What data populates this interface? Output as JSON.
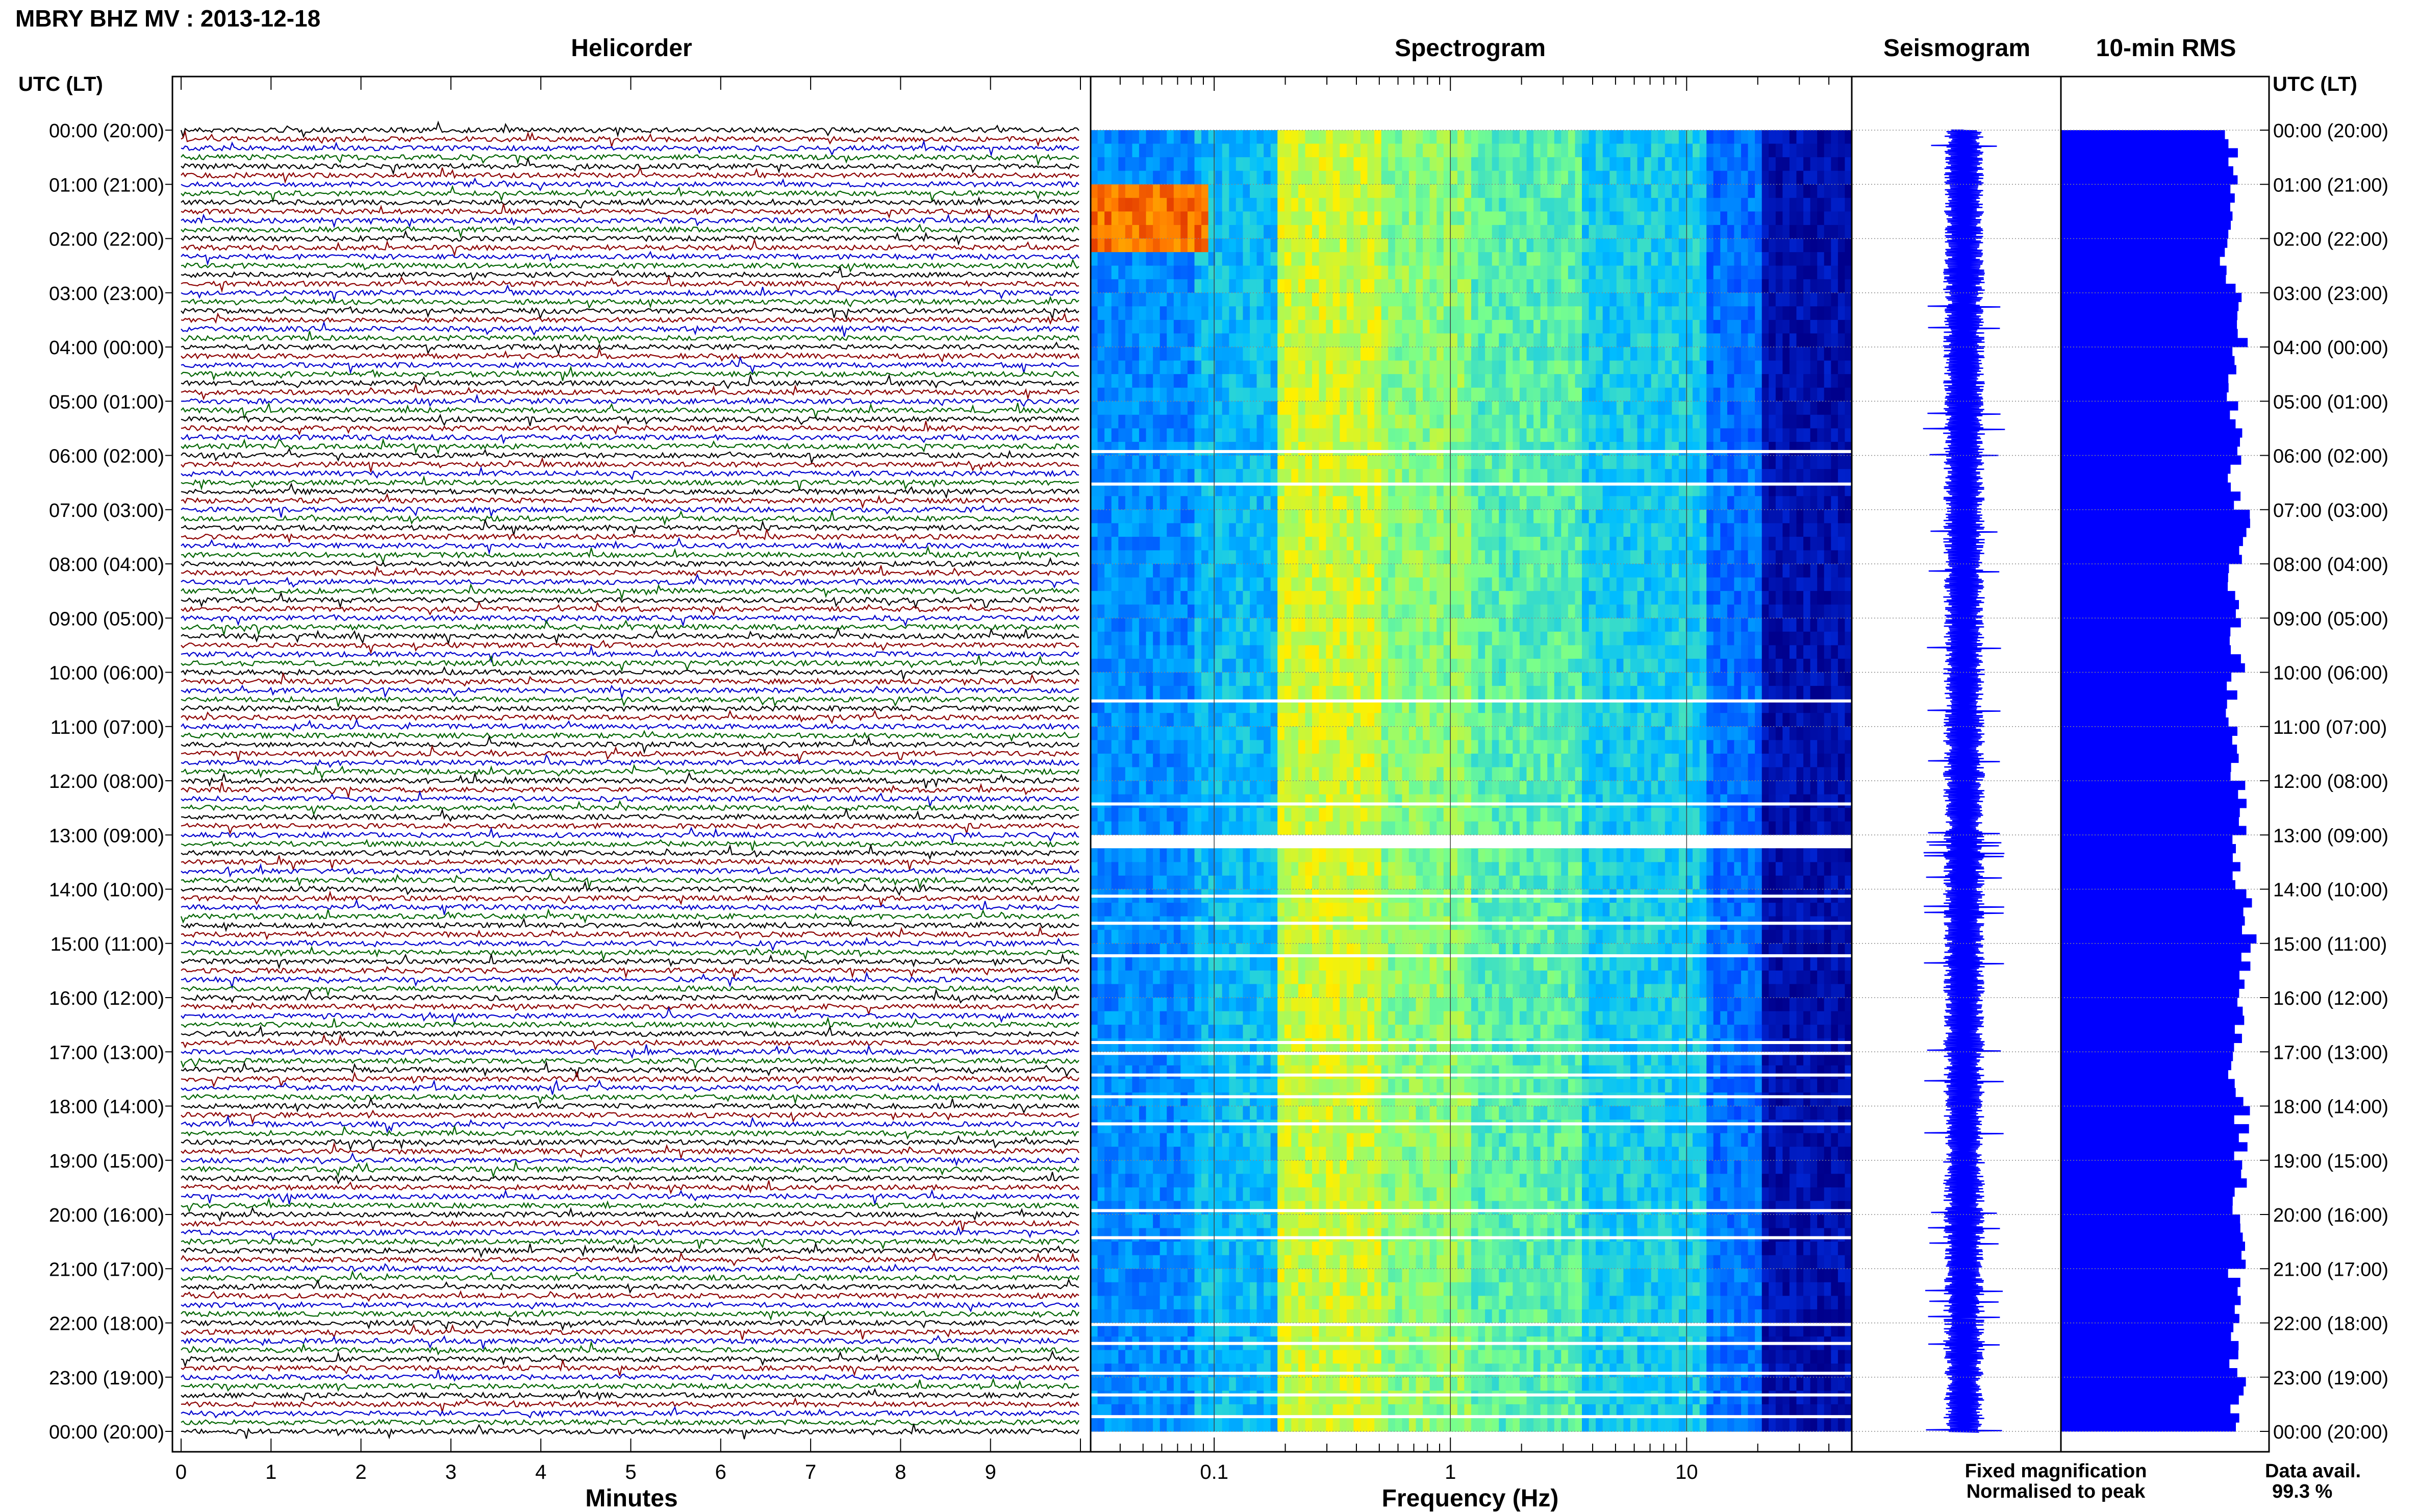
{
  "title": "MBRY BHZ MV : 2013-12-18",
  "time_axis_label": "UTC (LT)",
  "panels": {
    "helicorder": "Helicorder",
    "spectrogram": "Spectrogram",
    "seismogram": "Seismogram",
    "rms": "10-min RMS"
  },
  "hour_labels": [
    "00:00 (20:00)",
    "01:00 (21:00)",
    "02:00 (22:00)",
    "03:00 (23:00)",
    "04:00 (00:00)",
    "05:00 (01:00)",
    "06:00 (02:00)",
    "07:00 (03:00)",
    "08:00 (04:00)",
    "09:00 (05:00)",
    "10:00 (06:00)",
    "11:00 (07:00)",
    "12:00 (08:00)",
    "13:00 (09:00)",
    "14:00 (10:00)",
    "15:00 (11:00)",
    "16:00 (12:00)",
    "17:00 (13:00)",
    "18:00 (14:00)",
    "19:00 (15:00)",
    "20:00 (16:00)",
    "21:00 (17:00)",
    "22:00 (18:00)",
    "23:00 (19:00)",
    "00:00 (20:00)"
  ],
  "helicorder_xaxis": {
    "label": "Minutes",
    "ticks": [
      "0",
      "1",
      "2",
      "3",
      "4",
      "5",
      "6",
      "7",
      "8",
      "9"
    ]
  },
  "spectrogram_xaxis": {
    "label": "Frequency (Hz)",
    "ticks": [
      "0.1",
      "1",
      "10"
    ],
    "scale": "log",
    "range": [
      0.03,
      50
    ]
  },
  "legend": {
    "fixed": "Fixed magnification",
    "normalised": "Normalised to peak",
    "fixed_color": "#0000ff",
    "normalised_color": "#ff0000"
  },
  "data_avail": {
    "label": "Data avail.",
    "value": "99.3 %"
  },
  "colors": {
    "trace_cycle": [
      "#000000",
      "#8b0000",
      "#0000cd",
      "#006400"
    ],
    "rms_bar": "#0000ff",
    "seismogram": "#0000ff"
  },
  "chart_data": {
    "type": "heatmap",
    "helicorder_lines_per_hour": 6,
    "hours": 24,
    "data_gaps_utc_hours": [
      13.0,
      13.05
    ],
    "spectrogram_band_hz": [
      0.18,
      2.0
    ],
    "rms_series_relative": [
      0.82,
      0.84,
      0.8,
      0.86,
      0.83,
      0.85,
      0.84,
      0.87,
      0.83,
      0.85,
      0.82,
      0.84,
      0.86,
      0.85,
      0.9,
      0.88,
      0.86,
      0.84,
      0.87,
      0.86,
      0.85,
      0.84,
      0.83,
      0.85
    ],
    "data_availability_percent": 99.3
  }
}
